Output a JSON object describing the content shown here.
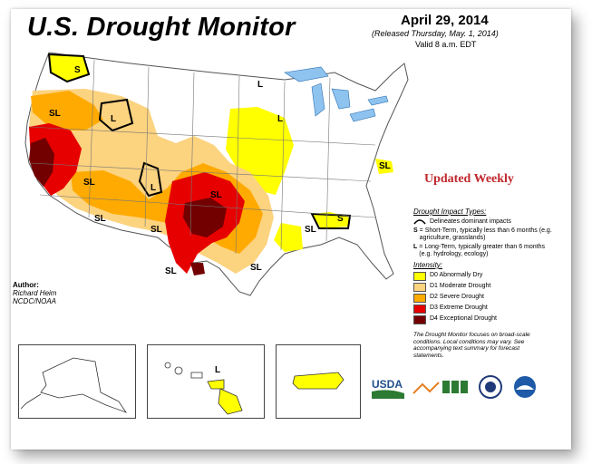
{
  "header": {
    "title": "U.S. Drought Monitor",
    "date": "April 29, 2014",
    "released": "(Released Thursday, May. 1, 2014)",
    "valid": "Valid 8 a.m. EDT"
  },
  "banner": "Updated Weekly",
  "impact": {
    "heading": "Drought Impact Types:",
    "line_text": "Delineates dominant impacts",
    "s_key": "S",
    "s_text": "= Short-Term, typically less than 6 months (e.g. agriculture, grasslands)",
    "l_key": "L",
    "l_text": "= Long-Term, typically greater than 6 months (e.g. hydrology, ecology)"
  },
  "intensity": {
    "heading": "Intensity:",
    "items": [
      {
        "label": "D0 Abnormally Dry",
        "color": "#ffff00"
      },
      {
        "label": "D1 Moderate Drought",
        "color": "#fcd37f"
      },
      {
        "label": "D2 Severe Drought",
        "color": "#ffaa00"
      },
      {
        "label": "D3 Extreme Drought",
        "color": "#e60000"
      },
      {
        "label": "D4 Exceptional Drought",
        "color": "#730000"
      }
    ]
  },
  "note": "The Drought Monitor focuses on broad-scale conditions. Local conditions may vary. See accompanying text summary for forecast statements.",
  "author": {
    "label": "Author:",
    "name": "Richard Heim",
    "org": "NCDC/NOAA"
  },
  "map_labels": {
    "s": "S",
    "l": "L",
    "sl": "SL"
  },
  "logos": {
    "usda": "USDA"
  },
  "icons": [
    "drought-impact-line-icon",
    "usda-logo",
    "ndmc-logo",
    "doc-seal-logo",
    "noaa-logo"
  ]
}
